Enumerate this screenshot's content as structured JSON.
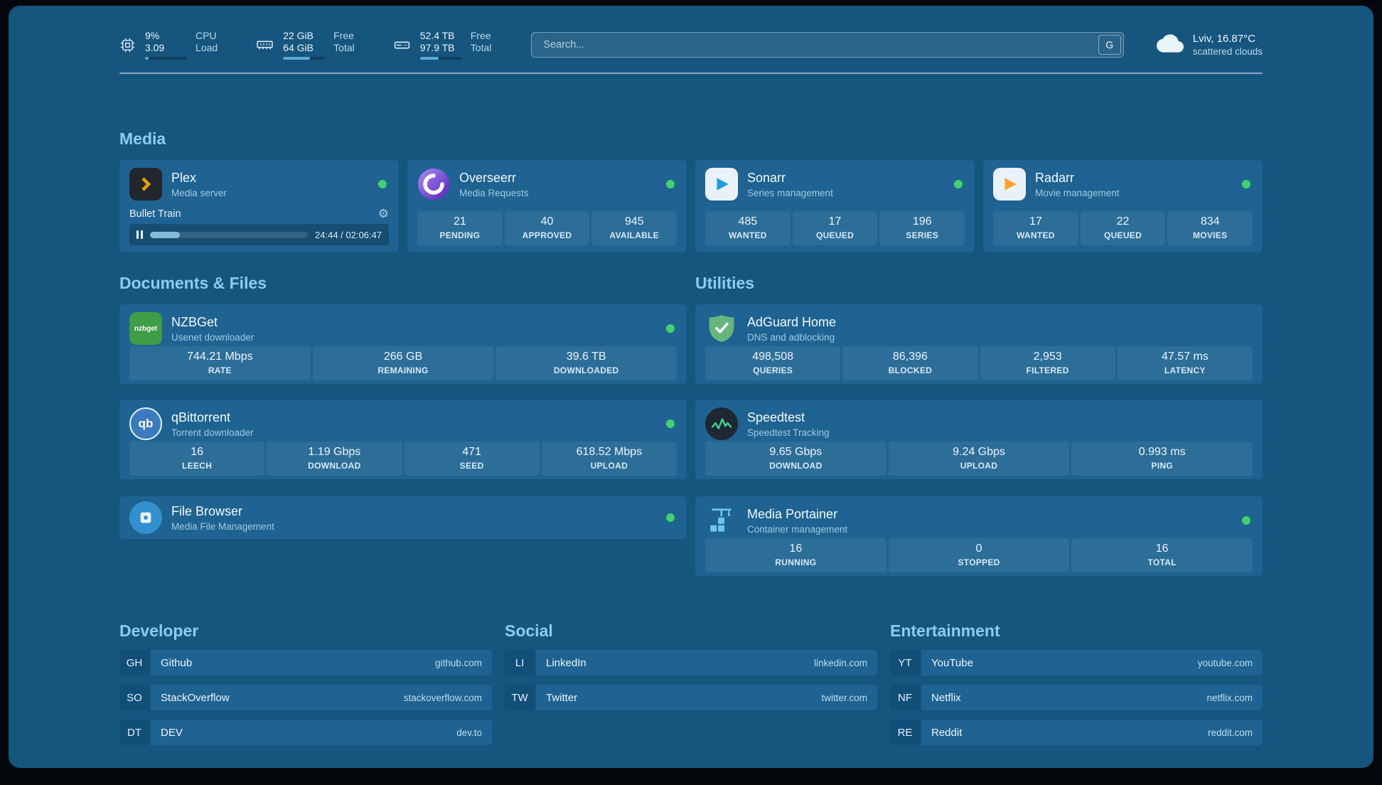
{
  "theme": {
    "background": "#15557E",
    "card": "#1E6391",
    "accent_text": "#8FCBEE",
    "status_online": "#43D16B"
  },
  "topbar": {
    "cpu": {
      "value_top": "9%",
      "value_bottom": "3.09",
      "label_top": "CPU",
      "label_bottom": "Load",
      "usage_percent": 9
    },
    "memory": {
      "value_top": "22 GiB",
      "value_bottom": "64 GiB",
      "label_top": "Free",
      "label_bottom": "Total",
      "usage_percent": 66
    },
    "disk": {
      "value_top": "52.4 TB",
      "value_bottom": "97.9 TB",
      "label_top": "Free",
      "label_bottom": "Total",
      "usage_percent": 46
    },
    "search": {
      "placeholder": "Search...",
      "engine_label": "G"
    },
    "weather": {
      "location": "Lviv, 16.87°C",
      "condition": "scattered clouds"
    }
  },
  "media": {
    "title": "Media",
    "plex": {
      "name": "Plex",
      "subtitle": "Media server",
      "now_playing": "Bullet Train",
      "time": "24:44 / 02:06:47",
      "progress_percent": 19
    },
    "overseerr": {
      "name": "Overseerr",
      "subtitle": "Media Requests",
      "stats": [
        {
          "value": "21",
          "label": "PENDING"
        },
        {
          "value": "40",
          "label": "APPROVED"
        },
        {
          "value": "945",
          "label": "AVAILABLE"
        }
      ]
    },
    "sonarr": {
      "name": "Sonarr",
      "subtitle": "Series management",
      "stats": [
        {
          "value": "485",
          "label": "WANTED"
        },
        {
          "value": "17",
          "label": "QUEUED"
        },
        {
          "value": "196",
          "label": "SERIES"
        }
      ]
    },
    "radarr": {
      "name": "Radarr",
      "subtitle": "Movie management",
      "stats": [
        {
          "value": "17",
          "label": "WANTED"
        },
        {
          "value": "22",
          "label": "QUEUED"
        },
        {
          "value": "834",
          "label": "MOVIES"
        }
      ]
    }
  },
  "documents": {
    "title": "Documents & Files",
    "nzbget": {
      "name": "NZBGet",
      "subtitle": "Usenet downloader",
      "icon_text": "nzbget",
      "stats": [
        {
          "value": "744.21 Mbps",
          "label": "RATE"
        },
        {
          "value": "266 GB",
          "label": "REMAINING"
        },
        {
          "value": "39.6 TB",
          "label": "DOWNLOADED"
        }
      ]
    },
    "qbittorrent": {
      "name": "qBittorrent",
      "subtitle": "Torrent downloader",
      "icon_text": "qb",
      "stats": [
        {
          "value": "16",
          "label": "LEECH"
        },
        {
          "value": "1.19 Gbps",
          "label": "DOWNLOAD"
        },
        {
          "value": "471",
          "label": "SEED"
        },
        {
          "value": "618.52 Mbps",
          "label": "UPLOAD"
        }
      ]
    },
    "filebrowser": {
      "name": "File Browser",
      "subtitle": "Media File Management"
    }
  },
  "utilities": {
    "title": "Utilities",
    "adguard": {
      "name": "AdGuard Home",
      "subtitle": "DNS and adblocking",
      "stats": [
        {
          "value": "498,508",
          "label": "QUERIES"
        },
        {
          "value": "86,396",
          "label": "BLOCKED"
        },
        {
          "value": "2,953",
          "label": "FILTERED"
        },
        {
          "value": "47.57 ms",
          "label": "LATENCY"
        }
      ]
    },
    "speedtest": {
      "name": "Speedtest",
      "subtitle": "Speedtest Tracking",
      "stats": [
        {
          "value": "9.65 Gbps",
          "label": "DOWNLOAD"
        },
        {
          "value": "9.24 Gbps",
          "label": "UPLOAD"
        },
        {
          "value": "0.993 ms",
          "label": "PING"
        }
      ]
    },
    "portainer": {
      "name": "Media Portainer",
      "subtitle": "Container management",
      "stats": [
        {
          "value": "16",
          "label": "RUNNING"
        },
        {
          "value": "0",
          "label": "STOPPED"
        },
        {
          "value": "16",
          "label": "TOTAL"
        }
      ]
    }
  },
  "bookmarks": {
    "developer": {
      "title": "Developer",
      "items": [
        {
          "abbr": "GH",
          "name": "Github",
          "url": "github.com"
        },
        {
          "abbr": "SO",
          "name": "StackOverflow",
          "url": "stackoverflow.com"
        },
        {
          "abbr": "DT",
          "name": "DEV",
          "url": "dev.to"
        }
      ]
    },
    "social": {
      "title": "Social",
      "items": [
        {
          "abbr": "LI",
          "name": "LinkedIn",
          "url": "linkedin.com"
        },
        {
          "abbr": "TW",
          "name": "Twitter",
          "url": "twitter.com"
        }
      ]
    },
    "entertainment": {
      "title": "Entertainment",
      "items": [
        {
          "abbr": "YT",
          "name": "YouTube",
          "url": "youtube.com"
        },
        {
          "abbr": "NF",
          "name": "Netflix",
          "url": "netflix.com"
        },
        {
          "abbr": "RE",
          "name": "Reddit",
          "url": "reddit.com"
        }
      ]
    }
  }
}
